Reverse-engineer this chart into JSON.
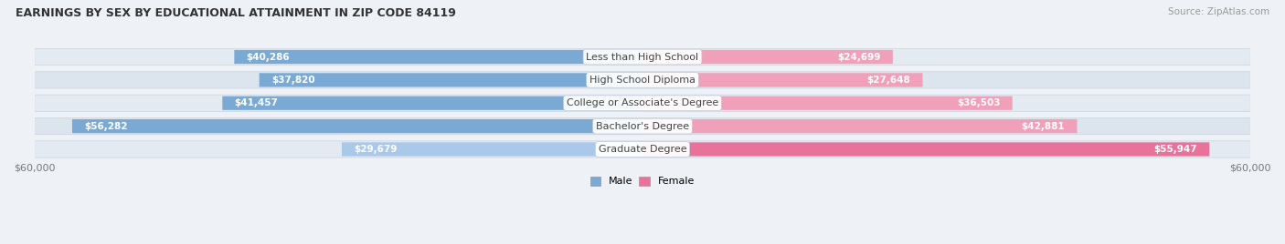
{
  "title": "EARNINGS BY SEX BY EDUCATIONAL ATTAINMENT IN ZIP CODE 84119",
  "source": "Source: ZipAtlas.com",
  "categories": [
    "Less than High School",
    "High School Diploma",
    "College or Associate's Degree",
    "Bachelor's Degree",
    "Graduate Degree"
  ],
  "male_values": [
    40286,
    37820,
    41457,
    56282,
    29679
  ],
  "female_values": [
    24699,
    27648,
    36503,
    42881,
    55947
  ],
  "max_val": 60000,
  "male_color": "#7aaad4",
  "female_color": "#e8729a",
  "male_color_light": "#aac8e8",
  "female_color_light": "#f0a0b8",
  "bg_color": "#eef2f7",
  "row_bg_odd": "#e4eaf2",
  "row_bg_even": "#dce4ee",
  "axis_label_color": "#777777",
  "title_color": "#333333",
  "source_color": "#999999",
  "category_label_color": "#444444",
  "label_inside_color": "#ffffff",
  "label_outside_color": "#777777"
}
